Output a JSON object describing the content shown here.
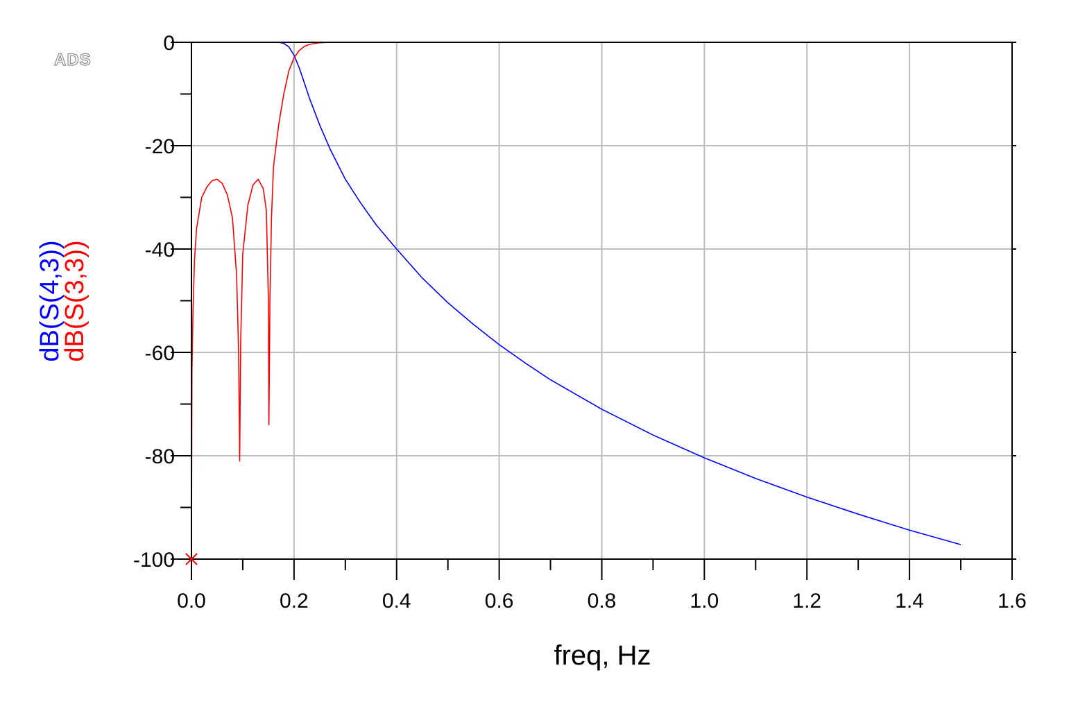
{
  "logo": "ADS",
  "chart_data": {
    "type": "line",
    "xlabel": "freq, Hz",
    "xlim": [
      0,
      1.6
    ],
    "ylim": [
      -100,
      0
    ],
    "x_ticks": [
      "0.0",
      "0.2",
      "0.4",
      "0.6",
      "0.8",
      "1.0",
      "1.2",
      "1.4",
      "1.6"
    ],
    "y_ticks": [
      "0",
      "-20",
      "-40",
      "-60",
      "-80",
      "-100"
    ],
    "grid": true,
    "series": [
      {
        "name": "dB(S(4,3))",
        "color": "#0000ff",
        "x": [
          0,
          0.05,
          0.1,
          0.15,
          0.17,
          0.18,
          0.19,
          0.2,
          0.21,
          0.22,
          0.23,
          0.25,
          0.27,
          0.3,
          0.33,
          0.36,
          0.4,
          0.45,
          0.5,
          0.55,
          0.6,
          0.65,
          0.7,
          0.8,
          0.9,
          1.0,
          1.1,
          1.2,
          1.3,
          1.4,
          1.5
        ],
        "y": [
          0,
          0,
          0,
          0,
          0,
          -0.2,
          -0.9,
          -2.5,
          -4.9,
          -7.8,
          -10.8,
          -16.0,
          -20.6,
          -26.5,
          -31.1,
          -35.3,
          -40.0,
          -45.6,
          -50.4,
          -54.6,
          -58.5,
          -62.0,
          -65.3,
          -71.0,
          -76.0,
          -80.4,
          -84.4,
          -88.0,
          -91.3,
          -94.4,
          -97.2
        ]
      },
      {
        "name": "dB(S(3,3))",
        "color": "#ff0000",
        "x": [
          0,
          0.001,
          0.003,
          0.006,
          0.01,
          0.02,
          0.03,
          0.04,
          0.05,
          0.06,
          0.07,
          0.08,
          0.088,
          0.092,
          0.094,
          0.096,
          0.1,
          0.11,
          0.12,
          0.13,
          0.14,
          0.146,
          0.15,
          0.151,
          0.153,
          0.156,
          0.16,
          0.17,
          0.18,
          0.19,
          0.2,
          0.21,
          0.22,
          0.23,
          0.25,
          0.27,
          0.3,
          0.5,
          1.0,
          1.5
        ],
        "y": [
          -100,
          -64,
          -52,
          -42,
          -36,
          -30,
          -28,
          -26.8,
          -26.5,
          -27.3,
          -29.5,
          -34,
          -45,
          -60,
          -81,
          -58,
          -41,
          -31.5,
          -27.6,
          -26.5,
          -28.3,
          -32.5,
          -50,
          -74,
          -50,
          -34,
          -24,
          -16,
          -10,
          -5.5,
          -3.0,
          -1.6,
          -0.8,
          -0.4,
          -0.1,
          0,
          0,
          0,
          0,
          0
        ]
      }
    ]
  }
}
